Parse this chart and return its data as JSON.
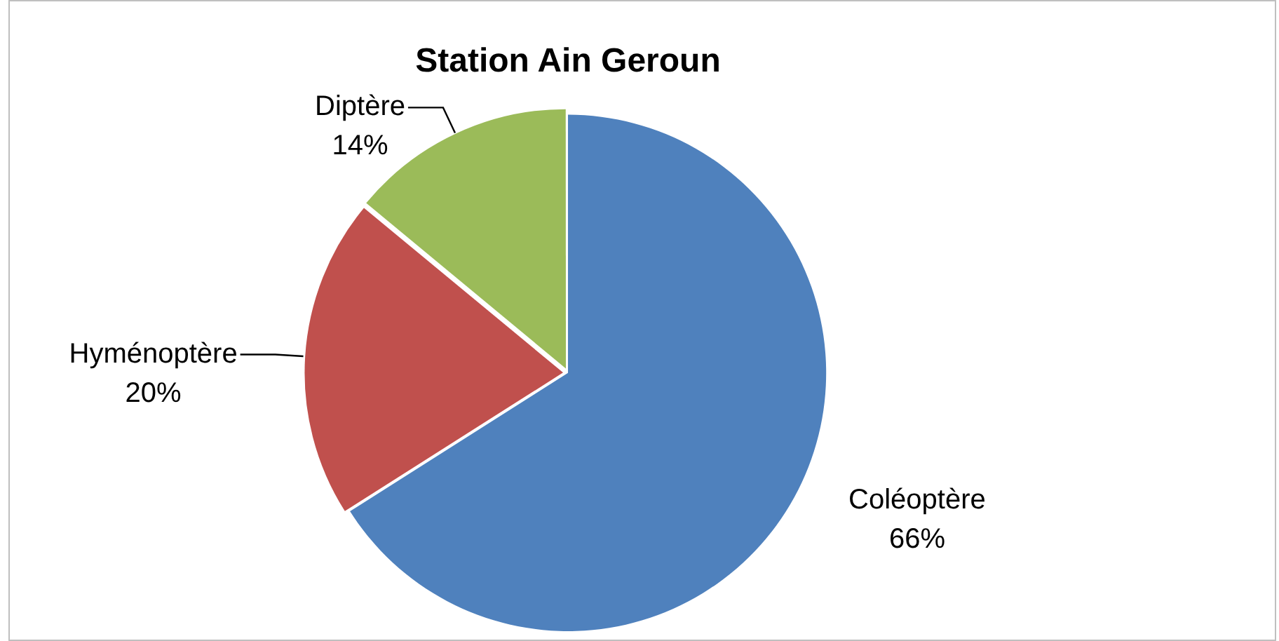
{
  "chart_data": {
    "type": "pie",
    "title": "Station Ain Geroun",
    "categories": [
      "Coléoptère",
      "Hyménoptère",
      "Diptère"
    ],
    "values": [
      66,
      20,
      14
    ],
    "colors": [
      "#4f81bd",
      "#c0504d",
      "#9bbb59"
    ],
    "legend": false,
    "value_labels": [
      "66%",
      "20%",
      "14%"
    ]
  }
}
